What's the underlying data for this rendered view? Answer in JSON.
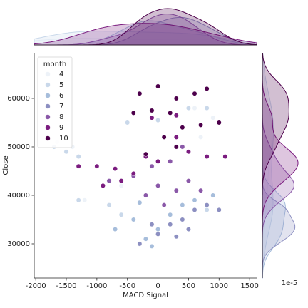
{
  "chart_data": {
    "type": "scatter",
    "xlabel": "MACD Signal",
    "ylabel": "Close",
    "legend_title": "month",
    "offset_text": "1e-5",
    "xlim": [
      -2025,
      1615
    ],
    "ylim": [
      22940,
      69260
    ],
    "xticks": [
      -2000,
      -1500,
      -1000,
      -500,
      0,
      500,
      1000,
      1500
    ],
    "yticks": [
      30000,
      40000,
      50000,
      60000
    ],
    "series": [
      {
        "name": "4",
        "color": "#edf2f8",
        "x": [
          -1400,
          -1200,
          600,
          700,
          -600,
          -1650,
          900
        ],
        "values": [
          50000,
          39000,
          58000,
          52000,
          42000,
          51000,
          56000
        ]
      },
      {
        "name": "5",
        "color": "#c9d8ea",
        "x": [
          -1700,
          -1500,
          -1300,
          -500,
          0,
          500,
          800,
          -1300,
          -800,
          -600,
          100,
          800
        ],
        "values": [
          50000,
          49000,
          48000,
          55000,
          55500,
          58000,
          58000,
          39000,
          38000,
          36000,
          38000,
          37000
        ]
      },
      {
        "name": "6",
        "color": "#a6bddb",
        "x": [
          -700,
          -400,
          -200,
          0,
          200,
          400,
          -300,
          600,
          900,
          -100
        ],
        "values": [
          33000,
          35000,
          31000,
          33000,
          36000,
          38000,
          38500,
          39000,
          40000,
          29500
        ]
      },
      {
        "name": "7",
        "color": "#8c8fc1",
        "x": [
          -300,
          0,
          200,
          400,
          600,
          800,
          1000,
          300,
          -100,
          500
        ],
        "values": [
          30000,
          32000,
          34000,
          35000,
          37000,
          38000,
          37000,
          31500,
          34000,
          33000
        ]
      },
      {
        "name": "8",
        "color": "#8a58a8",
        "x": [
          -400,
          -200,
          0,
          300,
          500,
          -800,
          200,
          400,
          -100,
          700,
          100
        ],
        "values": [
          44000,
          40000,
          42000,
          41000,
          43000,
          43000,
          47000,
          50000,
          46000,
          41000,
          38000
        ]
      },
      {
        "name": "9",
        "color": "#7b1c7f",
        "x": [
          -1300,
          -1000,
          -700,
          -400,
          -200,
          0,
          300,
          500,
          800,
          1100,
          -900,
          -600,
          -100,
          300
        ],
        "values": [
          46000,
          46000,
          45500,
          44500,
          48000,
          47000,
          52000,
          49000,
          48000,
          48000,
          42000,
          43000,
          56000,
          56500
        ]
      },
      {
        "name": "10",
        "color": "#4d004b",
        "x": [
          -300,
          0,
          300,
          600,
          800,
          -400,
          -100,
          200,
          400,
          700,
          1000,
          100,
          300,
          -200
        ],
        "values": [
          61000,
          62500,
          60000,
          61000,
          62000,
          57000,
          57500,
          57000,
          54000,
          54500,
          55000,
          52000,
          50000,
          48500
        ]
      }
    ]
  }
}
